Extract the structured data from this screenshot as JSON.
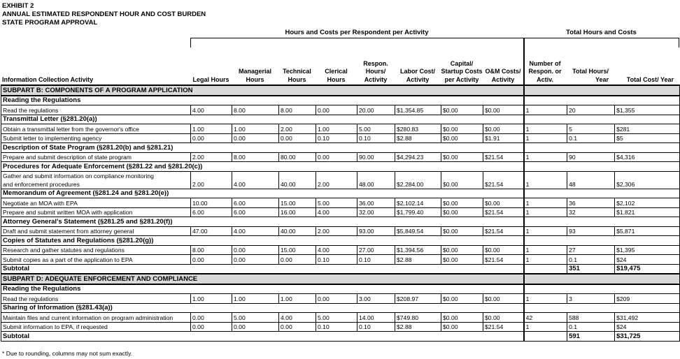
{
  "title": {
    "line1": "EXHIBIT 2",
    "line2": "ANNUAL ESTIMATED RESPONDENT HOUR AND COST BURDEN",
    "line3": "STATE PROGRAM APPROVAL"
  },
  "groups": {
    "per_activity": "Hours and Costs per Respondent per Activity",
    "totals": "Total Hours and Costs"
  },
  "columns": [
    "Information Collection Activity",
    "Legal Hours",
    "Managerial Hours",
    "Technical Hours",
    "Clerical Hours",
    "Respon. Hours/ Activity",
    "Labor Cost/ Activity",
    "Capital/ Startup Costs per Activity",
    "O&M Costs/ Activity",
    "Number of Respon. or Activ.",
    "Total Hours/ Year",
    "Total Cost/ Year"
  ],
  "rows": [
    {
      "type": "subpart",
      "label": "SUBPART B: COMPONENTS OF A PROGRAM APPLICATION"
    },
    {
      "type": "section",
      "label": "Reading the Regulations"
    },
    {
      "type": "data",
      "label": "Read the regulations",
      "values": [
        "4.00",
        "8.00",
        "8.00",
        "0.00",
        "20.00",
        "$1,354.85",
        "$0.00",
        "$0.00",
        "1",
        "20",
        "$1,355"
      ]
    },
    {
      "type": "section",
      "label": "Transmittal Letter (§281.20(a))"
    },
    {
      "type": "data",
      "label": "Obtain a transmittal letter from the governor's office",
      "values": [
        "1.00",
        "1.00",
        "2.00",
        "1.00",
        "5.00",
        "$280.83",
        "$0.00",
        "$0.00",
        "1",
        "5",
        "$281"
      ]
    },
    {
      "type": "data",
      "label": "Submit letter to implementing agency",
      "values": [
        "0.00",
        "0.00",
        "0.00",
        "0.10",
        "0.10",
        "$2.88",
        "$0.00",
        "$1.91",
        "1",
        "0.1",
        "$5"
      ]
    },
    {
      "type": "section",
      "label": "Description of State Program (§281.20(b) and §281.21)"
    },
    {
      "type": "data",
      "label": "Prepare and submit description of state program",
      "values": [
        "2.00",
        "8.00",
        "80.00",
        "0.00",
        "90.00",
        "$4,294.23",
        "$0.00",
        "$21.54",
        "1",
        "90",
        "$4,316"
      ]
    },
    {
      "type": "section",
      "label": "Procedures for Adequate Enforcement (§281.22 and §281.20(c))"
    },
    {
      "type": "data2",
      "label": "Gather and submit information on compliance monitoring",
      "label2": "and enforcement procedures",
      "values": [
        "2.00",
        "4.00",
        "40.00",
        "2.00",
        "48.00",
        "$2,284.00",
        "$0.00",
        "$21.54",
        "1",
        "48",
        "$2,306"
      ]
    },
    {
      "type": "section",
      "label": "Memorandum of Agreement (§281.24 and §281.20(e))"
    },
    {
      "type": "data",
      "label": "Negotiate an MOA with EPA",
      "values": [
        "10.00",
        "6.00",
        "15.00",
        "5.00",
        "36.00",
        "$2,102.14",
        "$0.00",
        "$0.00",
        "1",
        "36",
        "$2,102"
      ]
    },
    {
      "type": "data",
      "label": "Prepare and submit written MOA with application",
      "values": [
        "6.00",
        "6.00",
        "16.00",
        "4.00",
        "32.00",
        "$1,799.40",
        "$0.00",
        "$21.54",
        "1",
        "32",
        "$1,821"
      ]
    },
    {
      "type": "section",
      "label": "Attorney General's Statement (§281.25 and §281.20(f))"
    },
    {
      "type": "data",
      "label": "Draft and submit statement from attorney general",
      "values": [
        "47.00",
        "4.00",
        "40.00",
        "2.00",
        "93.00",
        "$5,849.54",
        "$0.00",
        "$21.54",
        "1",
        "93",
        "$5,871"
      ]
    },
    {
      "type": "section",
      "label": "Copies of Statutes and Regulations (§281.20(g))"
    },
    {
      "type": "data",
      "label": "Research and gather statutes and regulations",
      "values": [
        "8.00",
        "0.00",
        "15.00",
        "4.00",
        "27.00",
        "$1,394.56",
        "$0.00",
        "$0.00",
        "1",
        "27",
        "$1,395"
      ]
    },
    {
      "type": "data",
      "label": "Submit copies as a part of the application to EPA",
      "values": [
        "0.00",
        "0.00",
        "0.00",
        "0.10",
        "0.10",
        "$2.88",
        "$0.00",
        "$21.54",
        "1",
        "0.1",
        "$24"
      ]
    },
    {
      "type": "subtotal",
      "label": "Subtotal",
      "total_hours": "351",
      "total_cost": "$19,475"
    },
    {
      "type": "subpart",
      "label": "SUBPART D: ADEQUATE ENFORCEMENT AND COMPLIANCE"
    },
    {
      "type": "section",
      "label": "Reading the Regulations"
    },
    {
      "type": "data",
      "label": "Read the regulations",
      "values": [
        "1.00",
        "1.00",
        "1.00",
        "0.00",
        "3.00",
        "$208.97",
        "$0.00",
        "$0.00",
        "1",
        "3",
        "$209"
      ]
    },
    {
      "type": "section",
      "label": "Sharing of Information (§281.43(a))"
    },
    {
      "type": "data",
      "label": "Maintain files and current information on program administration",
      "values": [
        "0.00",
        "5.00",
        "4.00",
        "5.00",
        "14.00",
        "$749.80",
        "$0.00",
        "$0.00",
        "42",
        "588",
        "$31,492"
      ]
    },
    {
      "type": "data",
      "label": "Submit information to EPA, if requested",
      "values": [
        "0.00",
        "0.00",
        "0.00",
        "0.10",
        "0.10",
        "$2.88",
        "$0.00",
        "$21.54",
        "1",
        "0.1",
        "$24"
      ]
    },
    {
      "type": "subtotal",
      "label": "Subtotal",
      "total_hours": "591",
      "total_cost": "$31,725"
    }
  ],
  "footnote": "* Due to rounding, columns may not sum exactly."
}
